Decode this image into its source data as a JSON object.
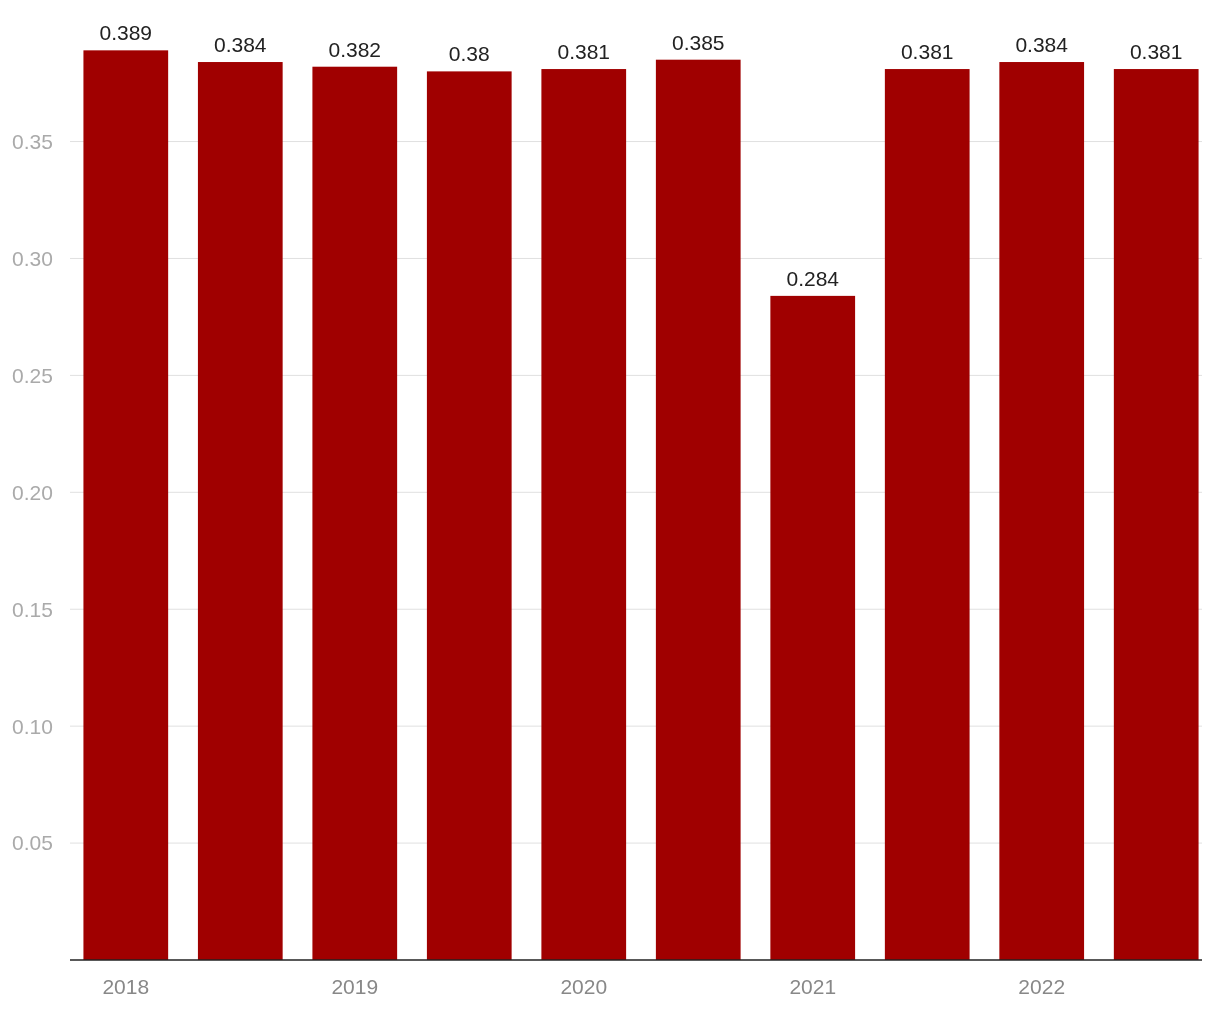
{
  "chart_data": {
    "type": "bar",
    "categories": [
      "2018",
      null,
      "2019",
      null,
      "2020",
      null,
      "2021",
      null,
      "2022",
      null
    ],
    "values": [
      0.389,
      0.384,
      0.382,
      0.38,
      0.381,
      0.385,
      0.284,
      0.381,
      0.384,
      0.381
    ],
    "color": "#a00000",
    "ylim": [
      0,
      0.39
    ],
    "yticks": [
      {
        "value": 0.05,
        "label": "0.05"
      },
      {
        "value": 0.1,
        "label": "0.10"
      },
      {
        "value": 0.15,
        "label": "0.15"
      },
      {
        "value": 0.2,
        "label": "0.20"
      },
      {
        "value": 0.25,
        "label": "0.25"
      },
      {
        "value": 0.3,
        "label": "0.30"
      },
      {
        "value": 0.35,
        "label": "0.35"
      }
    ],
    "grid": "y",
    "data_labels": true
  }
}
